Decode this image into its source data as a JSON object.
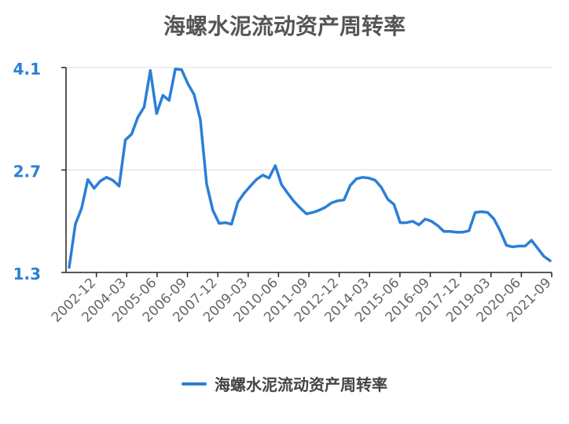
{
  "chart_data": {
    "type": "line",
    "title": "海螺水泥流动资产周转率",
    "xlabel": "",
    "ylabel": "",
    "ylim": [
      1.3,
      4.1
    ],
    "yticks": [
      "1.3",
      "2.7",
      "4.1"
    ],
    "xtick_labels": [
      "2002-12",
      "2004-03",
      "2005-06",
      "2006-09",
      "2007-12",
      "2009-03",
      "2010-06",
      "2011-09",
      "2012-12",
      "2014-03",
      "2015-06",
      "2016-09",
      "2017-12",
      "2019-03",
      "2020-06",
      "2021-09"
    ],
    "grid": true,
    "legend_position": "bottom",
    "series": [
      {
        "name": "海螺水泥流动资产周转率",
        "color": "#2b7fd6",
        "values": [
          1.37,
          1.96,
          2.18,
          2.57,
          2.45,
          2.55,
          2.6,
          2.56,
          2.48,
          3.11,
          3.19,
          3.42,
          3.56,
          4.06,
          3.47,
          3.72,
          3.65,
          4.08,
          4.07,
          3.88,
          3.73,
          3.39,
          2.51,
          2.15,
          1.97,
          1.98,
          1.96,
          2.26,
          2.38,
          2.48,
          2.57,
          2.63,
          2.59,
          2.76,
          2.5,
          2.38,
          2.27,
          2.18,
          2.1,
          2.12,
          2.15,
          2.19,
          2.25,
          2.28,
          2.29,
          2.49,
          2.58,
          2.6,
          2.59,
          2.56,
          2.46,
          2.3,
          2.23,
          1.98,
          1.98,
          2.0,
          1.95,
          2.03,
          2.0,
          1.94,
          1.86,
          1.86,
          1.85,
          1.85,
          1.87,
          2.12,
          2.13,
          2.12,
          2.03,
          1.87,
          1.67,
          1.65,
          1.66,
          1.66,
          1.74,
          1.63,
          1.52,
          1.46
        ]
      }
    ]
  }
}
